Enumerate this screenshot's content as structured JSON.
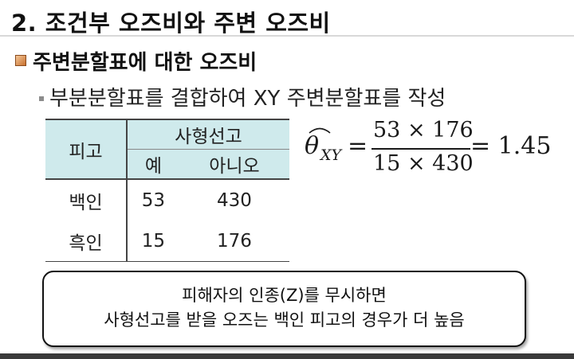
{
  "slide": {
    "title": "2. 조건부 오즈비와 주변 오즈비",
    "section_heading": "주변분할표에 대한 오즈비",
    "sub_point": "부분분할표를 결합하여 XY 주변분할표를 작성"
  },
  "table": {
    "row_header": "피고",
    "group_header": "사형선고",
    "columns": [
      "예",
      "아니오"
    ],
    "rows": [
      {
        "label": "백인",
        "values": [
          "53",
          "430"
        ]
      },
      {
        "label": "흑인",
        "values": [
          "15",
          "176"
        ]
      }
    ],
    "colors": {
      "header_bg": "#cfeaec"
    }
  },
  "formula": {
    "symbol": "θ",
    "subscript": "XY",
    "equals": "=",
    "numerator": "53 × 176",
    "denominator": "15 × 430",
    "result": "= 1.45"
  },
  "note": {
    "line1": "피해자의 인종(Z)를 무시하면",
    "line2": "사형선고를 받을 오즈는 백인 피고의 경우가 더 높음"
  },
  "colors": {
    "section_bullet": "#c8702e",
    "footer_strip": "#3a3a3a"
  }
}
